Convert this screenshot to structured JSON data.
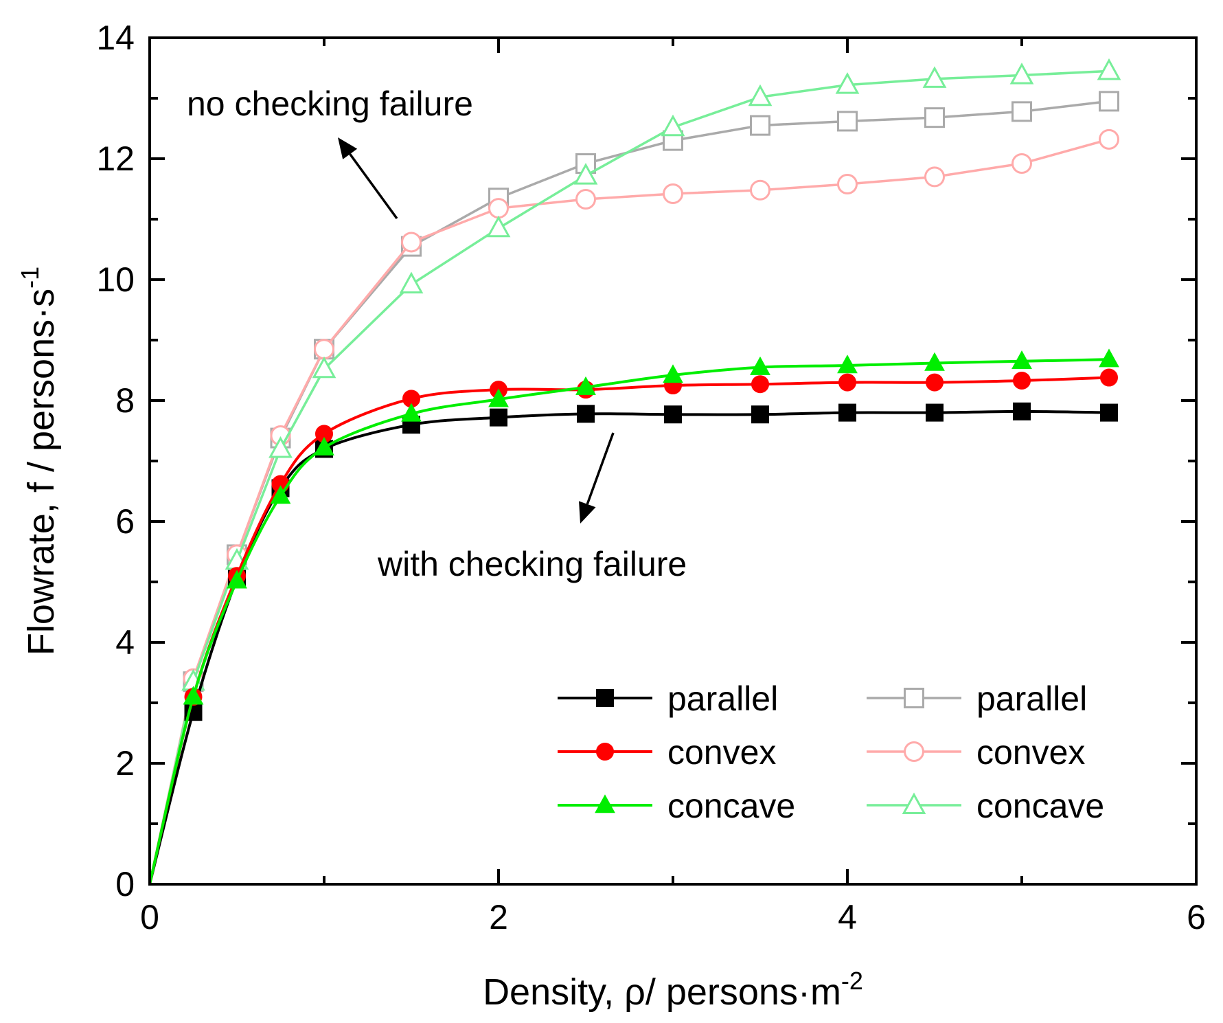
{
  "chart_data": {
    "type": "line",
    "title": "",
    "xlabel": "Density, ρ/ persons·m",
    "xlabel_sup": "-2",
    "ylabel": "Flowrate, f / persons·s",
    "ylabel_sup": "-1",
    "xlim": [
      0,
      6
    ],
    "ylim": [
      0,
      14
    ],
    "xticks": [
      0,
      2,
      4,
      6
    ],
    "yticks": [
      0,
      2,
      4,
      6,
      8,
      10,
      12,
      14
    ],
    "xtick_labels": [
      "0",
      "2",
      "4",
      "6"
    ],
    "ytick_labels": [
      "0",
      "2",
      "4",
      "6",
      "8",
      "10",
      "12",
      "14"
    ],
    "grid": false,
    "legend_position": "bottom-right",
    "annotations": [
      {
        "text": "no checking failure",
        "points_to": "upper curves"
      },
      {
        "text": "with checking failure",
        "points_to": "lower curves"
      }
    ],
    "series": [
      {
        "name": "parallel",
        "group": "with checking failure",
        "color": "#000000",
        "marker": "square",
        "filled": true,
        "x": [
          0,
          0.25,
          0.5,
          0.75,
          1,
          1.5,
          2,
          2.5,
          3,
          3.5,
          4,
          4.5,
          5,
          5.5
        ],
        "y": [
          0,
          2.85,
          5.05,
          6.55,
          7.2,
          7.6,
          7.72,
          7.78,
          7.77,
          7.77,
          7.8,
          7.8,
          7.82,
          7.8
        ]
      },
      {
        "name": "convex",
        "group": "with checking failure",
        "color": "#ff0000",
        "marker": "circle",
        "filled": true,
        "x": [
          0,
          0.25,
          0.5,
          0.75,
          1,
          1.5,
          2,
          2.5,
          3,
          3.5,
          4,
          4.5,
          5,
          5.5
        ],
        "y": [
          0,
          3.1,
          5.1,
          6.62,
          7.45,
          8.03,
          8.18,
          8.18,
          8.25,
          8.27,
          8.3,
          8.3,
          8.33,
          8.38
        ]
      },
      {
        "name": "concave",
        "group": "with checking failure",
        "color": "#00ee00",
        "marker": "triangle",
        "filled": true,
        "x": [
          0,
          0.25,
          0.5,
          0.75,
          1,
          1.5,
          2,
          2.5,
          3,
          3.5,
          4,
          4.5,
          5,
          5.5
        ],
        "y": [
          0,
          3.1,
          5.02,
          6.42,
          7.22,
          7.78,
          8.02,
          8.22,
          8.42,
          8.55,
          8.58,
          8.62,
          8.65,
          8.68
        ]
      },
      {
        "name": "parallel",
        "group": "no checking failure",
        "color": "#aaaaaa",
        "marker": "square",
        "filled": false,
        "x": [
          0,
          0.25,
          0.5,
          0.75,
          1,
          1.5,
          2,
          2.5,
          3,
          3.5,
          4,
          4.5,
          5,
          5.5
        ],
        "y": [
          0,
          3.35,
          5.45,
          7.38,
          8.85,
          10.55,
          11.35,
          11.92,
          12.3,
          12.55,
          12.62,
          12.68,
          12.78,
          12.95
        ]
      },
      {
        "name": "convex",
        "group": "no checking failure",
        "color": "#ffaaaa",
        "marker": "circle",
        "filled": false,
        "x": [
          0,
          0.25,
          0.5,
          0.75,
          1,
          1.5,
          2,
          2.5,
          3,
          3.5,
          4,
          4.5,
          5,
          5.5
        ],
        "y": [
          0,
          3.4,
          5.45,
          7.42,
          8.85,
          10.62,
          11.18,
          11.33,
          11.42,
          11.48,
          11.58,
          11.7,
          11.92,
          12.32
        ]
      },
      {
        "name": "concave",
        "group": "no checking failure",
        "color": "#77ee99",
        "marker": "triangle",
        "filled": false,
        "x": [
          0,
          0.25,
          0.5,
          0.75,
          1,
          1.5,
          2,
          2.5,
          3,
          3.5,
          4,
          4.5,
          5,
          5.5
        ],
        "y": [
          0,
          3.35,
          5.35,
          7.2,
          8.52,
          9.92,
          10.85,
          11.72,
          12.52,
          13.02,
          13.22,
          13.32,
          13.38,
          13.45
        ]
      }
    ]
  }
}
